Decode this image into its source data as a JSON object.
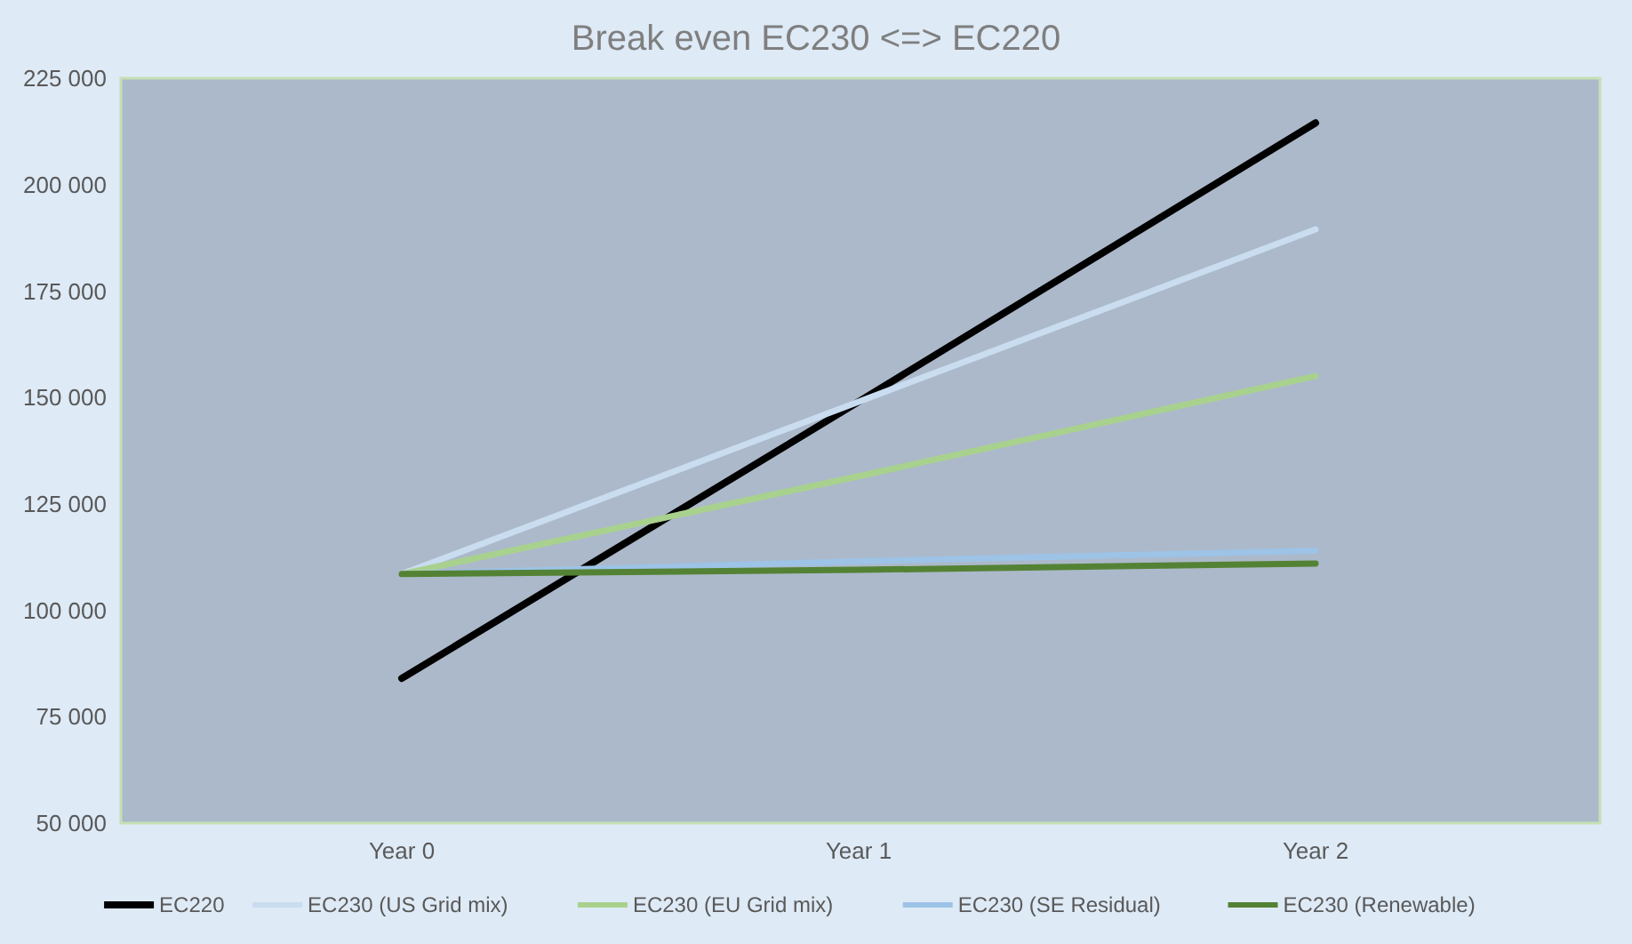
{
  "chart_data": {
    "type": "line",
    "title": "Break even EC230 <=> EC220",
    "categories": [
      "Year 0",
      "Year 1",
      "Year 2"
    ],
    "series": [
      {
        "name": "EC220",
        "color": "#000000",
        "values": [
          84000,
          149000,
          214500
        ]
      },
      {
        "name": "EC230 (US Grid mix)",
        "color": "#c9dcf0",
        "values": [
          108500,
          149000,
          189500
        ]
      },
      {
        "name": "EC230 (EU Grid mix)",
        "color": "#a9d18e",
        "values": [
          108500,
          131500,
          155000
        ]
      },
      {
        "name": "EC230 (SE Residual)",
        "color": "#9dc3e6",
        "values": [
          108500,
          111500,
          114000
        ]
      },
      {
        "name": "EC230 (Renewable)",
        "color": "#548235",
        "values": [
          108500,
          109500,
          111000
        ]
      }
    ],
    "ylim": [
      50000,
      225000
    ],
    "yticks": [
      {
        "value": 50000,
        "label": "50 000"
      },
      {
        "value": 75000,
        "label": "75 000"
      },
      {
        "value": 100000,
        "label": "100 000"
      },
      {
        "value": 125000,
        "label": "125 000"
      },
      {
        "value": 150000,
        "label": "150 000"
      },
      {
        "value": 175000,
        "label": "175 000"
      },
      {
        "value": 200000,
        "label": "200 000"
      },
      {
        "value": 225000,
        "label": "225 000"
      }
    ],
    "grid": false,
    "legend": "bottom",
    "marker": "none",
    "line_style": "solid"
  }
}
